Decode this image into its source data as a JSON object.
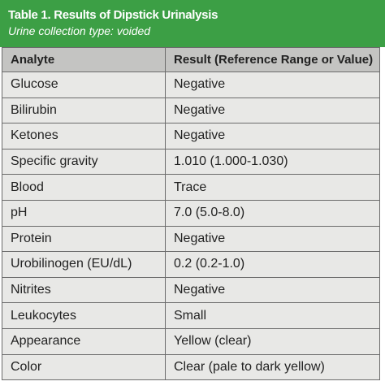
{
  "header": {
    "title": "Table 1. Results of Dipstick Urinalysis",
    "subtitle": "Urine collection type: voided"
  },
  "table": {
    "columns": [
      "Analyte",
      "Result (Reference Range or Value)"
    ],
    "rows": [
      [
        "Glucose",
        "Negative"
      ],
      [
        "Bilirubin",
        "Negative"
      ],
      [
        "Ketones",
        "Negative"
      ],
      [
        "Specific gravity",
        "1.010 (1.000-1.030)"
      ],
      [
        "Blood",
        "Trace"
      ],
      [
        "pH",
        "7.0 (5.0-8.0)"
      ],
      [
        "Protein",
        "Negative"
      ],
      [
        "Urobilinogen (EU/dL)",
        "0.2 (0.2-1.0)"
      ],
      [
        "Nitrites",
        "Negative"
      ],
      [
        "Leukocytes",
        "Small"
      ],
      [
        "Appearance",
        "Yellow (clear)"
      ],
      [
        "Color",
        "Clear (pale to dark yellow)"
      ]
    ]
  }
}
